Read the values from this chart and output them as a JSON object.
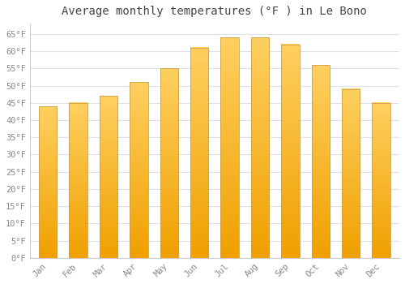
{
  "title": "Average monthly temperatures (°F ) in Le Bono",
  "months": [
    "Jan",
    "Feb",
    "Mar",
    "Apr",
    "May",
    "Jun",
    "Jul",
    "Aug",
    "Sep",
    "Oct",
    "Nov",
    "Dec"
  ],
  "values": [
    44,
    45,
    47,
    51,
    55,
    61,
    64,
    64,
    62,
    56,
    49,
    45
  ],
  "bar_color_bottom": "#F0A000",
  "bar_color_top": "#FFD060",
  "bar_edge_color": "#C8A050",
  "ylim": [
    0,
    68
  ],
  "yticks": [
    0,
    5,
    10,
    15,
    20,
    25,
    30,
    35,
    40,
    45,
    50,
    55,
    60,
    65
  ],
  "ytick_labels": [
    "0°F",
    "5°F",
    "10°F",
    "15°F",
    "20°F",
    "25°F",
    "30°F",
    "35°F",
    "40°F",
    "45°F",
    "50°F",
    "55°F",
    "60°F",
    "65°F"
  ],
  "background_color": "#ffffff",
  "grid_color": "#e0e0e8",
  "tick_label_color": "#888888",
  "title_color": "#444444",
  "title_fontsize": 10,
  "tick_fontsize": 7.5,
  "font_family": "monospace",
  "bar_width": 0.6
}
